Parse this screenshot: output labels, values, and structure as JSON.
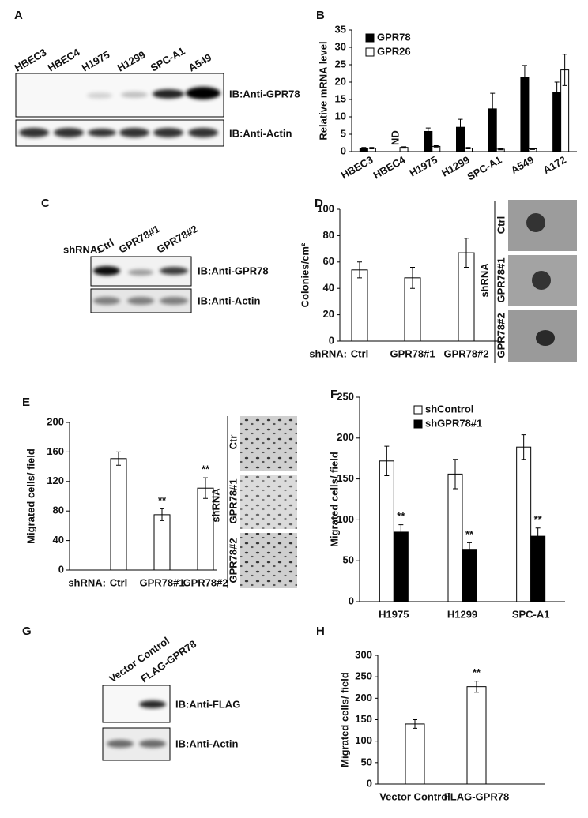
{
  "blots": [
    {
      "panel": "A",
      "lanes": [
        "HBEC3",
        "HBEC4",
        "H1975",
        "H1299",
        "SPC-A1",
        "A549"
      ],
      "probes": [
        "IB:Anti-GPR78",
        "IB:Anti-Actin"
      ]
    },
    {
      "panel": "C",
      "prefix": "shRNA:",
      "lanes": [
        "Ctrl",
        "GPR78#1",
        "GPR78#2"
      ],
      "probes": [
        "IB:Anti-GPR78",
        "IB:Anti-Actin"
      ]
    },
    {
      "panel": "G",
      "lanes": [
        "Vector Control",
        "FLAG-GPR78"
      ],
      "probes": [
        "IB:Anti-FLAG",
        "IB:Anti-Actin"
      ]
    }
  ],
  "chart_data": [
    {
      "panel": "B",
      "type": "bar",
      "y_label": "Relative mRNA level",
      "categories": [
        "HBEC3",
        "HBEC4",
        "H1975",
        "H1299",
        "SPC-A1",
        "A549",
        "A172"
      ],
      "series": [
        {
          "name": "GPR78",
          "color": "#000000",
          "values": [
            1,
            null,
            5.8,
            7,
            12.3,
            21.3,
            17
          ],
          "errors": [
            0.2,
            null,
            1,
            2.3,
            4.5,
            3.5,
            3
          ],
          "notes": [
            null,
            "ND",
            null,
            null,
            null,
            null,
            null
          ]
        },
        {
          "name": "GPR26",
          "color": "#ffffff",
          "values": [
            1,
            1.2,
            1.5,
            1,
            0.7,
            0.8,
            23.5
          ],
          "errors": [
            0.2,
            0.2,
            0.2,
            0.2,
            0.2,
            0.2,
            4.5
          ]
        }
      ],
      "ylim": [
        0,
        35
      ],
      "yticks": [
        0,
        5,
        10,
        15,
        20,
        25,
        30,
        35
      ],
      "legend": "upper left"
    },
    {
      "panel": "D",
      "type": "bar",
      "y_label": "Colonies/cm²",
      "x_prefix": "shRNA:",
      "categories": [
        "Ctrl",
        "GPR78#1",
        "GPR78#2"
      ],
      "color": "#ffffff",
      "values": [
        54,
        48,
        67
      ],
      "errors": [
        6,
        8,
        11
      ],
      "ylim": [
        0,
        100
      ],
      "yticks": [
        0,
        20,
        40,
        60,
        80,
        100
      ],
      "image_labels": {
        "group": "shRNA",
        "rows": [
          "Ctrl",
          "GPR78#1",
          "GPR78#2"
        ]
      }
    },
    {
      "panel": "E",
      "type": "bar",
      "y_label": "Migrated cells/ field",
      "x_prefix": "shRNA:",
      "categories": [
        "Ctrl",
        "GPR78#1",
        "GPR78#2"
      ],
      "color": "#ffffff",
      "values": [
        151,
        75,
        111
      ],
      "errors": [
        9,
        8,
        14
      ],
      "significance": [
        null,
        "**",
        "**"
      ],
      "ylim": [
        0,
        200
      ],
      "yticks": [
        0,
        40,
        80,
        120,
        160,
        200
      ],
      "image_labels": {
        "group": "shRNA",
        "rows": [
          "Ctr",
          "GPR78#1",
          "GPR78#2"
        ]
      }
    },
    {
      "panel": "F",
      "type": "bar",
      "y_label": "Migrated cells/ field",
      "categories": [
        "H1975",
        "H1299",
        "SPC-A1"
      ],
      "series": [
        {
          "name": "shControl",
          "color": "#ffffff",
          "values": [
            172,
            156,
            189
          ],
          "errors": [
            18,
            18,
            15
          ]
        },
        {
          "name": "shGPR78#1",
          "color": "#000000",
          "values": [
            85,
            64,
            80
          ],
          "errors": [
            9,
            8,
            10
          ],
          "significance": [
            "**",
            "**",
            "**"
          ]
        }
      ],
      "ylim": [
        0,
        250
      ],
      "yticks": [
        0,
        50,
        100,
        150,
        200,
        250
      ],
      "legend": "upper left"
    },
    {
      "panel": "H",
      "type": "bar",
      "y_label": "Migrated cells/ field",
      "categories": [
        "Vector Control",
        "FLAG-GPR78"
      ],
      "color": "#ffffff",
      "values": [
        140,
        227
      ],
      "errors": [
        10,
        13
      ],
      "significance": [
        null,
        "**"
      ],
      "ylim": [
        0,
        300
      ],
      "yticks": [
        0,
        50,
        100,
        150,
        200,
        250,
        300
      ]
    }
  ]
}
